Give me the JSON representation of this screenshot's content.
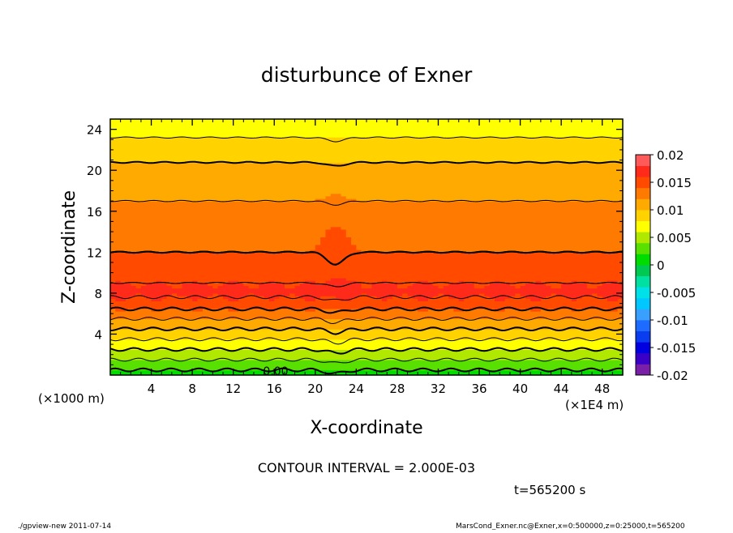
{
  "chart_data": {
    "type": "heatmap",
    "title": "disturbunce of Exner",
    "xlabel": "X-coordinate",
    "ylabel": "Z-coordinate",
    "x_unit_left": "(×1000 m)",
    "x_unit_right": "(×1E4 m)",
    "xlim": [
      0,
      50
    ],
    "ylim": [
      0,
      25
    ],
    "x_ticks": [
      "4",
      "8",
      "12",
      "16",
      "20",
      "24",
      "28",
      "32",
      "36",
      "40",
      "44",
      "48"
    ],
    "y_ticks": [
      "4",
      "8",
      "12",
      "16",
      "20",
      "24"
    ],
    "colorbar": {
      "ticks": [
        "0.02",
        "0.015",
        "0.01",
        "0.005",
        "0",
        "-0.005",
        "-0.01",
        "-0.015",
        "-0.02"
      ],
      "levels": [
        -0.02,
        -0.018,
        -0.016,
        -0.014,
        -0.012,
        -0.01,
        -0.008,
        -0.006,
        -0.004,
        -0.002,
        0,
        0.002,
        0.004,
        0.006,
        0.008,
        0.01,
        0.012,
        0.014,
        0.016,
        0.018,
        0.02
      ],
      "colors": [
        "#7a1fa8",
        "#3a00c8",
        "#0000e0",
        "#0a3cf0",
        "#1e6cff",
        "#3aa0ff",
        "#00c8ff",
        "#00e0e8",
        "#00e0a0",
        "#00c850",
        "#00dc00",
        "#58e000",
        "#b0e800",
        "#ffff00",
        "#ffd200",
        "#ffaa00",
        "#ff7a00",
        "#ff4a00",
        "#ff2a1a",
        "#ff5a5a"
      ]
    },
    "profile": {
      "z": [
        0,
        1,
        2,
        3,
        4,
        5,
        6,
        7,
        8,
        9,
        10,
        12,
        14,
        16,
        18,
        20,
        22,
        24,
        25
      ],
      "value": [
        0.001,
        0.003,
        0.005,
        0.007,
        0.009,
        0.011,
        0.013,
        0.0152,
        0.0165,
        0.016,
        0.015,
        0.014,
        0.0135,
        0.0125,
        0.0115,
        0.0105,
        0.0092,
        0.0072,
        0.0062
      ]
    },
    "contour_labels": [
      "0.00"
    ],
    "contour_interval_label": "CONTOUR INTERVAL = 2.000E-03",
    "time_label": "t=565200 s"
  },
  "footer": {
    "left": "./gpview-new   2011-07-14",
    "right": "MarsCond_Exner.nc@Exner,x=0:500000,z=0:25000,t=565200"
  }
}
